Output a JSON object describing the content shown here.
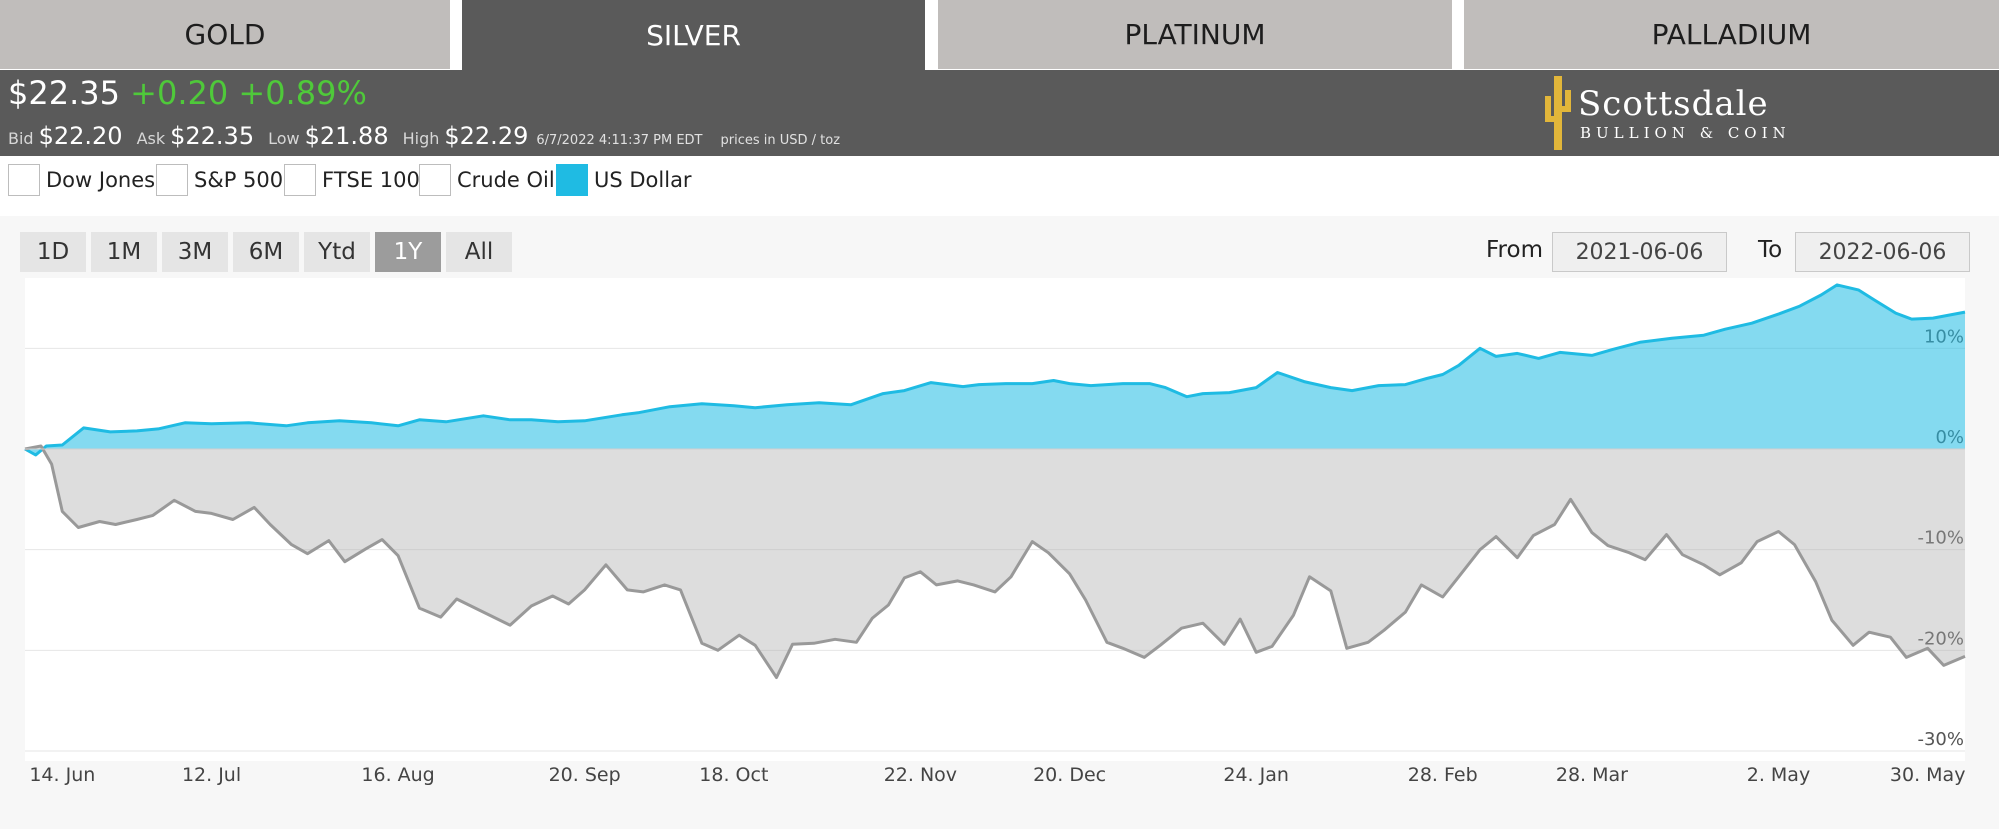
{
  "tabs": [
    {
      "label": "GOLD",
      "active": false
    },
    {
      "label": "SILVER",
      "active": true
    },
    {
      "label": "PLATINUM",
      "active": false
    },
    {
      "label": "PALLADIUM",
      "active": false
    }
  ],
  "quote": {
    "price": "$22.35",
    "change": "+0.20",
    "change_pct": "+0.89%",
    "bid_label": "Bid",
    "bid": "$22.20",
    "ask_label": "Ask",
    "ask": "$22.35",
    "low_label": "Low",
    "low": "$21.88",
    "high_label": "High",
    "high": "$22.29",
    "timestamp": "6/7/2022 4:11:37 PM EDT",
    "units": "prices in USD / toz",
    "change_color": "#4fc93a"
  },
  "logo": {
    "line1": "Scottsdale",
    "line2": "BULLION & COIN",
    "icon": "cactus-icon",
    "color": "#e2b63a"
  },
  "compare": [
    {
      "label": "Dow Jones",
      "checked": false
    },
    {
      "label": "S&P 500",
      "checked": false
    },
    {
      "label": "FTSE 100",
      "checked": false
    },
    {
      "label": "Crude Oil",
      "checked": false
    },
    {
      "label": "US Dollar",
      "checked": true
    }
  ],
  "range_buttons": [
    "1D",
    "1M",
    "3M",
    "6M",
    "Ytd",
    "1Y",
    "All"
  ],
  "range_active": "1Y",
  "from_label": "From",
  "from_value": "2021-06-06",
  "to_label": "To",
  "to_value": "2022-06-06",
  "chart_data": {
    "type": "area",
    "ylim": [
      -30,
      15
    ],
    "grid": true,
    "y_ticks": [
      "10%",
      "0%",
      "-10%",
      "-20%",
      "-30%"
    ],
    "x_ticks": [
      "14. Jun",
      "12. Jul",
      "16. Aug",
      "20. Sep",
      "18. Oct",
      "22. Nov",
      "20. Dec",
      "24. Jan",
      "28. Feb",
      "28. Mar",
      "2. May",
      "30. May"
    ],
    "x_tick_dates": [
      "2021-06-14",
      "2021-07-12",
      "2021-08-16",
      "2021-09-20",
      "2021-10-18",
      "2021-11-22",
      "2021-12-20",
      "2022-01-24",
      "2022-02-28",
      "2022-03-28",
      "2022-05-02",
      "2022-05-30"
    ],
    "x_range": [
      "2021-06-07",
      "2022-06-06"
    ],
    "series": [
      {
        "color": "#1fbbe3",
        "points": [
          [
            "2021-06-07",
            0.0
          ],
          [
            "2021-06-09",
            -0.6
          ],
          [
            "2021-06-11",
            0.3
          ],
          [
            "2021-06-14",
            0.4
          ],
          [
            "2021-06-18",
            2.1
          ],
          [
            "2021-06-23",
            1.7
          ],
          [
            "2021-06-28",
            1.8
          ],
          [
            "2021-07-02",
            2.0
          ],
          [
            "2021-07-07",
            2.6
          ],
          [
            "2021-07-12",
            2.5
          ],
          [
            "2021-07-19",
            2.6
          ],
          [
            "2021-07-26",
            2.3
          ],
          [
            "2021-07-30",
            2.6
          ],
          [
            "2021-08-05",
            2.8
          ],
          [
            "2021-08-11",
            2.6
          ],
          [
            "2021-08-16",
            2.3
          ],
          [
            "2021-08-20",
            2.9
          ],
          [
            "2021-08-25",
            2.7
          ],
          [
            "2021-09-01",
            3.3
          ],
          [
            "2021-09-06",
            2.9
          ],
          [
            "2021-09-10",
            2.9
          ],
          [
            "2021-09-15",
            2.7
          ],
          [
            "2021-09-20",
            2.8
          ],
          [
            "2021-09-27",
            3.4
          ],
          [
            "2021-09-30",
            3.6
          ],
          [
            "2021-10-06",
            4.2
          ],
          [
            "2021-10-12",
            4.5
          ],
          [
            "2021-10-18",
            4.3
          ],
          [
            "2021-10-22",
            4.1
          ],
          [
            "2021-10-28",
            4.4
          ],
          [
            "2021-11-03",
            4.6
          ],
          [
            "2021-11-09",
            4.4
          ],
          [
            "2021-11-15",
            5.5
          ],
          [
            "2021-11-19",
            5.8
          ],
          [
            "2021-11-24",
            6.6
          ],
          [
            "2021-11-30",
            6.2
          ],
          [
            "2021-12-03",
            6.4
          ],
          [
            "2021-12-08",
            6.5
          ],
          [
            "2021-12-13",
            6.5
          ],
          [
            "2021-12-17",
            6.8
          ],
          [
            "2021-12-20",
            6.5
          ],
          [
            "2021-12-24",
            6.3
          ],
          [
            "2021-12-30",
            6.5
          ],
          [
            "2022-01-04",
            6.5
          ],
          [
            "2022-01-07",
            6.1
          ],
          [
            "2022-01-11",
            5.2
          ],
          [
            "2022-01-14",
            5.5
          ],
          [
            "2022-01-19",
            5.6
          ],
          [
            "2022-01-24",
            6.1
          ],
          [
            "2022-01-28",
            7.6
          ],
          [
            "2022-02-02",
            6.7
          ],
          [
            "2022-02-07",
            6.1
          ],
          [
            "2022-02-11",
            5.8
          ],
          [
            "2022-02-16",
            6.3
          ],
          [
            "2022-02-21",
            6.4
          ],
          [
            "2022-02-25",
            7.0
          ],
          [
            "2022-02-28",
            7.4
          ],
          [
            "2022-03-03",
            8.3
          ],
          [
            "2022-03-07",
            10.0
          ],
          [
            "2022-03-10",
            9.2
          ],
          [
            "2022-03-14",
            9.5
          ],
          [
            "2022-03-18",
            9.0
          ],
          [
            "2022-03-22",
            9.6
          ],
          [
            "2022-03-28",
            9.3
          ],
          [
            "2022-04-01",
            9.9
          ],
          [
            "2022-04-06",
            10.6
          ],
          [
            "2022-04-12",
            11.0
          ],
          [
            "2022-04-18",
            11.3
          ],
          [
            "2022-04-22",
            11.9
          ],
          [
            "2022-04-27",
            12.5
          ],
          [
            "2022-05-02",
            13.4
          ],
          [
            "2022-05-06",
            14.2
          ],
          [
            "2022-05-10",
            15.3
          ],
          [
            "2022-05-13",
            16.3
          ],
          [
            "2022-05-17",
            15.8
          ],
          [
            "2022-05-20",
            14.8
          ],
          [
            "2022-05-24",
            13.5
          ],
          [
            "2022-05-27",
            12.9
          ],
          [
            "2022-05-31",
            13.0
          ],
          [
            "2022-06-03",
            13.3
          ],
          [
            "2022-06-06",
            13.6
          ]
        ]
      },
      {
        "color": "#999999",
        "points": [
          [
            "2021-06-07",
            0.0
          ],
          [
            "2021-06-10",
            0.3
          ],
          [
            "2021-06-12",
            -1.5
          ],
          [
            "2021-06-14",
            -6.2
          ],
          [
            "2021-06-17",
            -7.8
          ],
          [
            "2021-06-21",
            -7.2
          ],
          [
            "2021-06-24",
            -7.5
          ],
          [
            "2021-06-28",
            -7.0
          ],
          [
            "2021-07-01",
            -6.6
          ],
          [
            "2021-07-05",
            -5.1
          ],
          [
            "2021-07-09",
            -6.2
          ],
          [
            "2021-07-12",
            -6.4
          ],
          [
            "2021-07-16",
            -7.0
          ],
          [
            "2021-07-20",
            -5.8
          ],
          [
            "2021-07-23",
            -7.5
          ],
          [
            "2021-07-27",
            -9.5
          ],
          [
            "2021-07-30",
            -10.4
          ],
          [
            "2021-08-03",
            -9.1
          ],
          [
            "2021-08-06",
            -11.2
          ],
          [
            "2021-08-10",
            -9.9
          ],
          [
            "2021-08-13",
            -9.0
          ],
          [
            "2021-08-16",
            -10.6
          ],
          [
            "2021-08-20",
            -15.8
          ],
          [
            "2021-08-24",
            -16.7
          ],
          [
            "2021-08-27",
            -14.9
          ],
          [
            "2021-09-01",
            -16.2
          ],
          [
            "2021-09-06",
            -17.5
          ],
          [
            "2021-09-10",
            -15.6
          ],
          [
            "2021-09-14",
            -14.6
          ],
          [
            "2021-09-17",
            -15.4
          ],
          [
            "2021-09-20",
            -14.0
          ],
          [
            "2021-09-24",
            -11.5
          ],
          [
            "2021-09-28",
            -14.0
          ],
          [
            "2021-10-01",
            -14.2
          ],
          [
            "2021-10-05",
            -13.5
          ],
          [
            "2021-10-08",
            -14.0
          ],
          [
            "2021-10-12",
            -19.3
          ],
          [
            "2021-10-15",
            -20.0
          ],
          [
            "2021-10-19",
            -18.5
          ],
          [
            "2021-10-22",
            -19.5
          ],
          [
            "2021-10-26",
            -22.7
          ],
          [
            "2021-10-29",
            -19.4
          ],
          [
            "2021-11-02",
            -19.3
          ],
          [
            "2021-11-06",
            -18.9
          ],
          [
            "2021-11-10",
            -19.2
          ],
          [
            "2021-11-13",
            -16.8
          ],
          [
            "2021-11-16",
            -15.5
          ],
          [
            "2021-11-19",
            -12.8
          ],
          [
            "2021-11-22",
            -12.2
          ],
          [
            "2021-11-25",
            -13.5
          ],
          [
            "2021-11-29",
            -13.1
          ],
          [
            "2021-12-02",
            -13.5
          ],
          [
            "2021-12-06",
            -14.2
          ],
          [
            "2021-12-09",
            -12.7
          ],
          [
            "2021-12-13",
            -9.2
          ],
          [
            "2021-12-16",
            -10.3
          ],
          [
            "2021-12-20",
            -12.4
          ],
          [
            "2021-12-23",
            -15.0
          ],
          [
            "2021-12-27",
            -19.2
          ],
          [
            "2021-12-30",
            -19.8
          ],
          [
            "2022-01-03",
            -20.7
          ],
          [
            "2022-01-06",
            -19.5
          ],
          [
            "2022-01-10",
            -17.8
          ],
          [
            "2022-01-14",
            -17.3
          ],
          [
            "2022-01-18",
            -19.4
          ],
          [
            "2022-01-21",
            -16.9
          ],
          [
            "2022-01-24",
            -20.2
          ],
          [
            "2022-01-27",
            -19.6
          ],
          [
            "2022-01-31",
            -16.5
          ],
          [
            "2022-02-03",
            -12.7
          ],
          [
            "2022-02-07",
            -14.1
          ],
          [
            "2022-02-10",
            -19.8
          ],
          [
            "2022-02-14",
            -19.2
          ],
          [
            "2022-02-17",
            -18.0
          ],
          [
            "2022-02-21",
            -16.2
          ],
          [
            "2022-02-24",
            -13.5
          ],
          [
            "2022-02-28",
            -14.7
          ],
          [
            "2022-03-03",
            -12.7
          ],
          [
            "2022-03-07",
            -10.0
          ],
          [
            "2022-03-10",
            -8.7
          ],
          [
            "2022-03-14",
            -10.8
          ],
          [
            "2022-03-17",
            -8.6
          ],
          [
            "2022-03-21",
            -7.5
          ],
          [
            "2022-03-24",
            -5.0
          ],
          [
            "2022-03-28",
            -8.3
          ],
          [
            "2022-03-31",
            -9.6
          ],
          [
            "2022-04-04",
            -10.3
          ],
          [
            "2022-04-07",
            -11.0
          ],
          [
            "2022-04-11",
            -8.5
          ],
          [
            "2022-04-14",
            -10.5
          ],
          [
            "2022-04-18",
            -11.5
          ],
          [
            "2022-04-21",
            -12.5
          ],
          [
            "2022-04-25",
            -11.3
          ],
          [
            "2022-04-28",
            -9.2
          ],
          [
            "2022-05-02",
            -8.2
          ],
          [
            "2022-05-05",
            -9.5
          ],
          [
            "2022-05-09",
            -13.2
          ],
          [
            "2022-05-12",
            -17.0
          ],
          [
            "2022-05-16",
            -19.5
          ],
          [
            "2022-05-19",
            -18.2
          ],
          [
            "2022-05-23",
            -18.7
          ],
          [
            "2022-05-26",
            -20.7
          ],
          [
            "2022-05-30",
            -19.8
          ],
          [
            "2022-06-02",
            -21.5
          ],
          [
            "2022-06-06",
            -20.6
          ]
        ]
      }
    ]
  }
}
